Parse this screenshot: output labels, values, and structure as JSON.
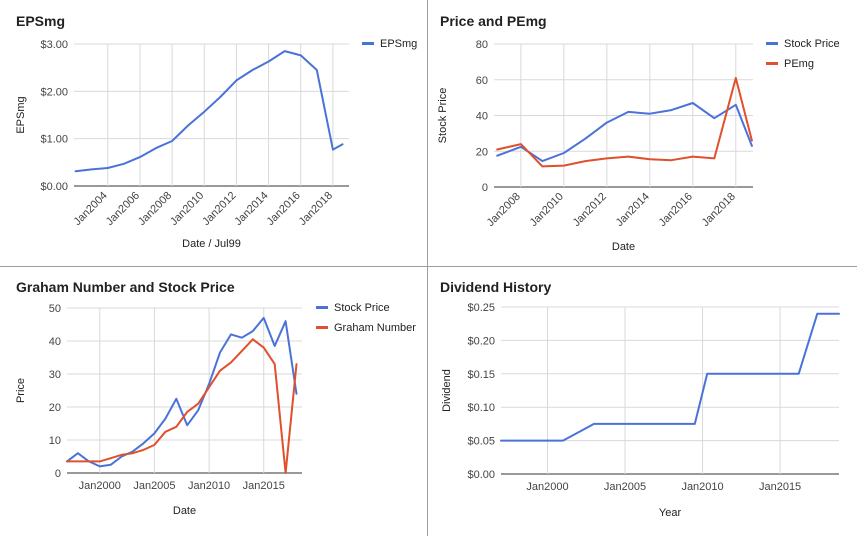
{
  "chart_data": [
    {
      "id": "eps",
      "type": "line",
      "title": "EPSmg",
      "xlabel": "Date / Jul99",
      "ylabel": "EPSmg",
      "xlim": [
        2001.9,
        2019.0
      ],
      "ylim": [
        0,
        3
      ],
      "yticks": [
        0,
        1,
        2,
        3
      ],
      "ytick_labels": [
        "$0.00",
        "$1.00",
        "$2.00",
        "$3.00"
      ],
      "xticks": [
        2004,
        2006,
        2008,
        2010,
        2012,
        2014,
        2016,
        2018
      ],
      "xtick_labels": [
        "Jan2004",
        "Jan2006",
        "Jan2008",
        "Jan2010",
        "Jan2012",
        "Jan2014",
        "Jan2016",
        "Jan2018"
      ],
      "legend_position": "top-right",
      "series": [
        {
          "name": "EPSmg",
          "color": "#4a72d9",
          "x": [
            2002.0,
            2003.0,
            2004.0,
            2005.0,
            2006.0,
            2007.0,
            2008.0,
            2009.0,
            2010.0,
            2011.0,
            2012.0,
            2013.0,
            2014.0,
            2015.0,
            2016.0,
            2017.0,
            2018.0,
            2018.6
          ],
          "y": [
            0.31,
            0.35,
            0.38,
            0.47,
            0.61,
            0.8,
            0.95,
            1.28,
            1.57,
            1.88,
            2.23,
            2.45,
            2.63,
            2.85,
            2.76,
            2.45,
            0.77,
            0.88
          ]
        }
      ]
    },
    {
      "id": "price_pe",
      "type": "line",
      "title": "Price and PEmg",
      "xlabel": "Date",
      "ylabel": "Stock Price",
      "xlim": [
        2006.75,
        2018.8
      ],
      "ylim": [
        0,
        80
      ],
      "yticks": [
        0,
        20,
        40,
        60,
        80
      ],
      "ytick_labels": [
        "0",
        "20",
        "40",
        "60",
        "80"
      ],
      "xticks": [
        2008,
        2010,
        2012,
        2014,
        2016,
        2018
      ],
      "xtick_labels": [
        "Jan2008",
        "Jan2010",
        "Jan2012",
        "Jan2014",
        "Jan2016",
        "Jan2018"
      ],
      "legend_position": "top-right",
      "series": [
        {
          "name": "Stock Price",
          "color": "#4a72d9",
          "x": [
            2006.9,
            2008.0,
            2009.0,
            2010.0,
            2011.0,
            2012.0,
            2013.0,
            2014.0,
            2015.0,
            2016.0,
            2017.0,
            2018.0,
            2018.75
          ],
          "y": [
            17.5,
            22.5,
            14.5,
            19.0,
            27.0,
            36.0,
            42.0,
            41.0,
            43.0,
            47.0,
            38.5,
            46.0,
            23.0
          ]
        },
        {
          "name": "PEmg",
          "color": "#e0502c",
          "x": [
            2006.9,
            2008.0,
            2009.0,
            2010.0,
            2011.0,
            2012.0,
            2013.0,
            2014.0,
            2015.0,
            2016.0,
            2017.0,
            2018.0,
            2018.75
          ],
          "y": [
            21.0,
            24.0,
            11.5,
            12.0,
            14.5,
            16.0,
            17.0,
            15.5,
            15.0,
            17.0,
            16.0,
            61.0,
            26.0
          ]
        }
      ]
    },
    {
      "id": "graham",
      "type": "line",
      "title": "Graham Number and Stock Price",
      "xlabel": "Date",
      "ylabel": "Price",
      "xlim": [
        1997.0,
        2018.5
      ],
      "ylim": [
        0,
        50
      ],
      "yticks": [
        0,
        10,
        20,
        30,
        40,
        50
      ],
      "ytick_labels": [
        "0",
        "10",
        "20",
        "30",
        "40",
        "50"
      ],
      "xticks": [
        2000,
        2005,
        2010,
        2015
      ],
      "xtick_labels": [
        "Jan2000",
        "Jan2005",
        "Jan2010",
        "Jan2015"
      ],
      "legend_position": "top-right",
      "series": [
        {
          "name": "Stock Price",
          "color": "#4a72d9",
          "x": [
            1997.0,
            1998.0,
            1999.0,
            2000.0,
            2001.0,
            2002.0,
            2003.0,
            2004.0,
            2005.0,
            2006.0,
            2007.0,
            2008.0,
            2009.0,
            2010.0,
            2011.0,
            2012.0,
            2013.0,
            2014.0,
            2015.0,
            2016.0,
            2017.0,
            2018.0
          ],
          "y": [
            3.5,
            6.0,
            3.5,
            2.0,
            2.5,
            5.0,
            6.5,
            9.0,
            12.0,
            16.5,
            22.5,
            14.5,
            19.0,
            27.0,
            36.5,
            42.0,
            41.0,
            43.0,
            47.0,
            38.5,
            46.0,
            24.0
          ]
        },
        {
          "name": "Graham Number",
          "color": "#e0502c",
          "x": [
            1997.0,
            1998.0,
            1999.0,
            2000.0,
            2001.0,
            2002.0,
            2003.0,
            2004.0,
            2005.0,
            2006.0,
            2007.0,
            2008.0,
            2009.0,
            2010.0,
            2011.0,
            2012.0,
            2013.0,
            2014.0,
            2015.0,
            2016.0,
            2017.0,
            2018.0
          ],
          "y": [
            3.5,
            3.5,
            3.5,
            3.5,
            4.5,
            5.5,
            6.0,
            7.0,
            8.5,
            12.5,
            14.0,
            18.5,
            21.0,
            26.0,
            31.0,
            33.5,
            37.0,
            40.5,
            38.0,
            33.0,
            0.0,
            33.0
          ]
        }
      ]
    },
    {
      "id": "dividend",
      "type": "line",
      "title": "Dividend History",
      "xlabel": "Year",
      "ylabel": "Dividend",
      "xlim": [
        1997.0,
        2018.8
      ],
      "ylim": [
        0,
        0.25
      ],
      "yticks": [
        0,
        0.05,
        0.1,
        0.15,
        0.2,
        0.25
      ],
      "ytick_labels": [
        "$0.00",
        "$0.05",
        "$0.10",
        "$0.15",
        "$0.20",
        "$0.25"
      ],
      "xticks": [
        2000,
        2005,
        2010,
        2015
      ],
      "xtick_labels": [
        "Jan2000",
        "Jan2005",
        "Jan2010",
        "Jan2015"
      ],
      "series": [
        {
          "name": "",
          "color": "#4a72d9",
          "x": [
            1997.0,
            2001.0,
            2003.0,
            2009.5,
            2010.3,
            2016.2,
            2017.4,
            2018.8
          ],
          "y": [
            0.05,
            0.05,
            0.075,
            0.075,
            0.15,
            0.15,
            0.24,
            0.24
          ]
        }
      ]
    }
  ]
}
